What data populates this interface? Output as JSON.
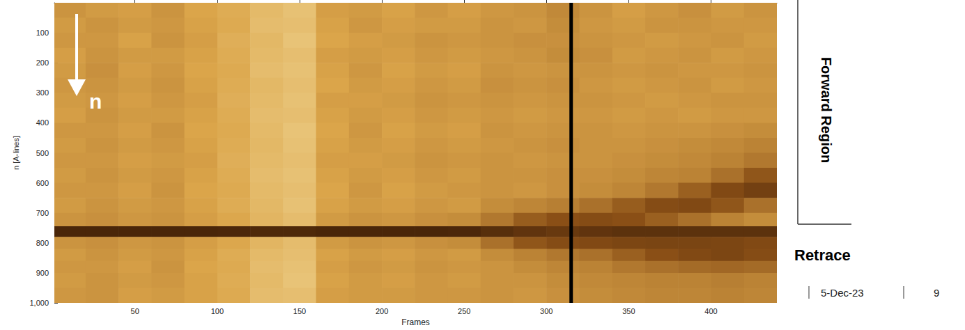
{
  "chart_data": {
    "type": "heatmap",
    "x_label": "Frames",
    "y_label": "n [A-lines]",
    "xlim": [
      1,
      440
    ],
    "ylim": [
      0,
      1000
    ],
    "xticks": [
      50,
      100,
      150,
      200,
      250,
      300,
      350,
      400
    ],
    "yticks": [
      100,
      200,
      300,
      400,
      500,
      600,
      700,
      800,
      900,
      1000
    ],
    "zlim": [
      0,
      100
    ],
    "marker_line_x": 315,
    "cells": {
      "x_edges": [
        1,
        20,
        40,
        60,
        80,
        100,
        120,
        140,
        160,
        180,
        200,
        220,
        240,
        260,
        280,
        300,
        320,
        340,
        360,
        380,
        400,
        420,
        440
      ],
      "y_edges": [
        0,
        50,
        100,
        150,
        200,
        250,
        300,
        350,
        400,
        450,
        500,
        550,
        600,
        650,
        700,
        745,
        780,
        820,
        860,
        900,
        950,
        1000
      ],
      "values": [
        [
          60,
          62,
          63,
          60,
          65,
          68,
          74,
          77,
          63,
          62,
          64,
          61,
          63,
          61,
          60,
          57,
          60,
          63,
          61,
          59,
          62,
          60
        ],
        [
          62,
          60,
          62,
          61,
          64,
          67,
          75,
          76,
          64,
          61,
          63,
          62,
          62,
          60,
          61,
          58,
          61,
          62,
          60,
          60,
          61,
          61
        ],
        [
          61,
          61,
          64,
          60,
          63,
          69,
          73,
          78,
          65,
          63,
          62,
          60,
          61,
          60,
          59,
          59,
          60,
          61,
          62,
          61,
          60,
          62
        ],
        [
          63,
          60,
          62,
          62,
          64,
          68,
          74,
          76,
          63,
          62,
          63,
          61,
          62,
          61,
          60,
          58,
          59,
          62,
          61,
          60,
          62,
          61
        ],
        [
          62,
          59,
          63,
          61,
          65,
          67,
          75,
          77,
          64,
          61,
          64,
          62,
          63,
          60,
          61,
          60,
          60,
          61,
          60,
          61,
          61,
          60
        ],
        [
          61,
          60,
          62,
          60,
          64,
          68,
          73,
          76,
          65,
          62,
          63,
          61,
          62,
          59,
          60,
          59,
          61,
          62,
          61,
          60,
          62,
          61
        ],
        [
          62,
          61,
          63,
          61,
          63,
          69,
          74,
          77,
          63,
          63,
          62,
          60,
          61,
          60,
          61,
          60,
          60,
          61,
          62,
          61,
          60,
          60
        ],
        [
          63,
          60,
          62,
          62,
          64,
          68,
          75,
          76,
          64,
          62,
          63,
          61,
          62,
          61,
          62,
          61,
          61,
          62,
          61,
          62,
          61,
          61
        ],
        [
          61,
          61,
          63,
          60,
          65,
          67,
          74,
          78,
          65,
          61,
          64,
          62,
          63,
          60,
          61,
          60,
          60,
          61,
          60,
          60,
          59,
          58
        ],
        [
          62,
          60,
          62,
          61,
          64,
          68,
          73,
          77,
          64,
          62,
          63,
          61,
          62,
          61,
          60,
          59,
          60,
          60,
          59,
          58,
          57,
          55
        ],
        [
          61,
          61,
          63,
          62,
          63,
          69,
          74,
          76,
          63,
          63,
          62,
          60,
          61,
          60,
          61,
          60,
          60,
          59,
          58,
          57,
          55,
          52
        ],
        [
          62,
          60,
          62,
          61,
          64,
          68,
          75,
          77,
          64,
          62,
          63,
          61,
          62,
          60,
          60,
          59,
          59,
          58,
          56,
          55,
          50,
          42
        ],
        [
          61,
          61,
          63,
          60,
          65,
          67,
          74,
          76,
          65,
          61,
          64,
          62,
          61,
          60,
          61,
          59,
          58,
          56,
          52,
          45,
          36,
          30
        ],
        [
          62,
          60,
          62,
          61,
          64,
          68,
          73,
          77,
          64,
          62,
          63,
          61,
          62,
          58,
          56,
          54,
          50,
          44,
          38,
          36,
          42,
          50
        ],
        [
          60,
          59,
          61,
          60,
          63,
          66,
          72,
          75,
          62,
          60,
          61,
          59,
          58,
          52,
          44,
          40,
          38,
          40,
          45,
          50,
          55,
          58
        ],
        [
          12,
          12,
          12,
          12,
          12,
          13,
          14,
          14,
          12,
          12,
          12,
          12,
          13,
          18,
          22,
          25,
          22,
          20,
          20,
          20,
          20,
          20
        ],
        [
          60,
          59,
          61,
          60,
          63,
          66,
          72,
          75,
          62,
          60,
          61,
          59,
          58,
          50,
          42,
          38,
          36,
          34,
          33,
          33,
          34,
          36
        ],
        [
          62,
          60,
          62,
          61,
          64,
          68,
          74,
          76,
          64,
          62,
          63,
          61,
          62,
          58,
          55,
          52,
          50,
          45,
          40,
          36,
          34,
          38
        ],
        [
          61,
          61,
          63,
          60,
          65,
          67,
          75,
          77,
          63,
          61,
          62,
          60,
          61,
          60,
          58,
          56,
          55,
          52,
          50,
          48,
          47,
          48
        ],
        [
          62,
          60,
          62,
          61,
          64,
          68,
          74,
          78,
          64,
          62,
          63,
          61,
          62,
          60,
          60,
          58,
          57,
          56,
          55,
          55,
          54,
          55
        ],
        [
          61,
          60,
          63,
          62,
          64,
          67,
          75,
          76,
          63,
          62,
          62,
          61,
          61,
          60,
          61,
          59,
          58,
          57,
          56,
          56,
          55,
          56
        ]
      ]
    }
  },
  "slide": {
    "arrow_label": "n",
    "region_label": "Forward Region",
    "retrace_label": "Retrace",
    "date": "5-Dec-23",
    "page": 9
  }
}
